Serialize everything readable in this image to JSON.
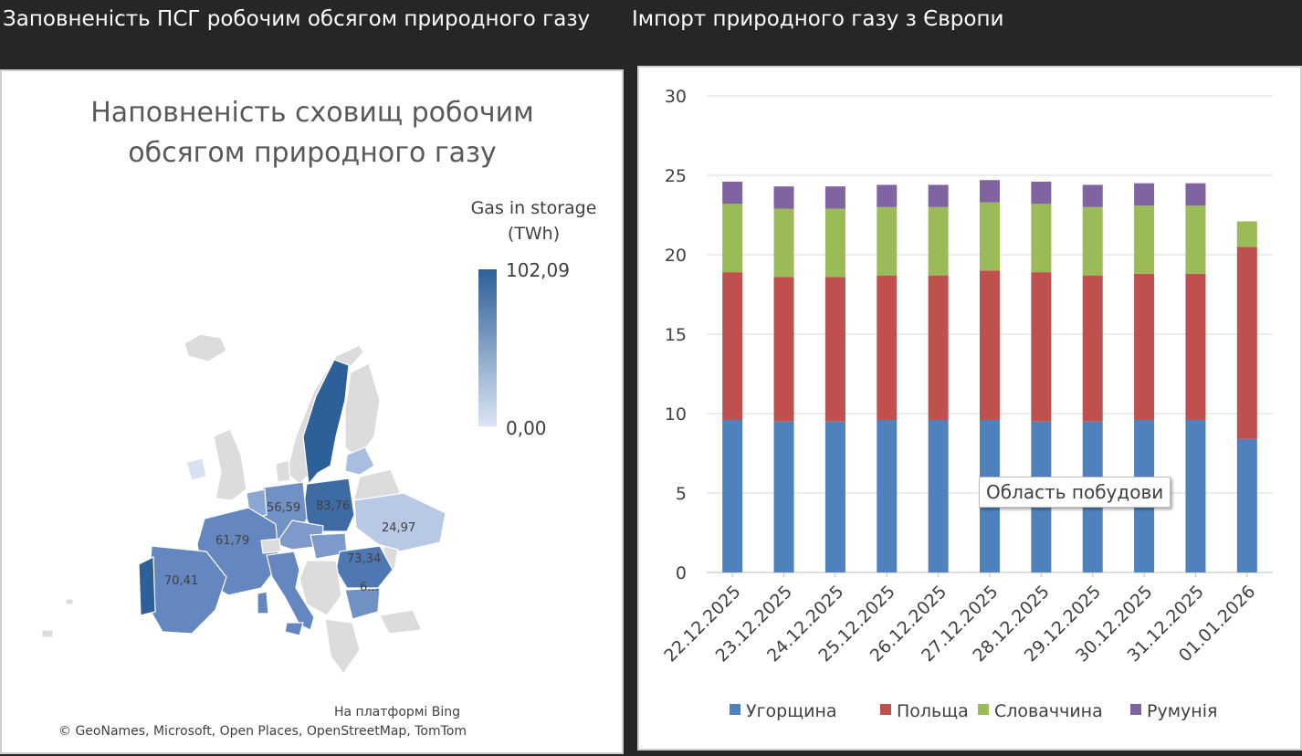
{
  "header": {
    "left_title": "Заповненість ПСГ робочим обсягом природного газу",
    "right_title": "Імпорт природного газу з Європи"
  },
  "map": {
    "title_line1": "Наповненість сховищ робочим",
    "title_line2": "обсягом природного газу",
    "legend_title_line1": "Gas in storage",
    "legend_title_line2": "(TWh)",
    "legend_max": "102,09",
    "legend_min": "0,00",
    "labels": {
      "germany": "56,59",
      "poland": "83,76",
      "france": "61,79",
      "ukraine": "24,97",
      "romania": "73,34",
      "spain": "70,41",
      "bulgaria": "6..."
    },
    "attribution_line1": "На платформі Bing",
    "attribution_line2": "© GeoNames, Microsoft, Open Places, OpenStreetMap, TomTom"
  },
  "tooltip": "Область побудови",
  "colors": {
    "hungary": "#4f81bd",
    "poland": "#c0504d",
    "slovakia": "#9bbb59",
    "romania": "#8064a2"
  },
  "chart_data": {
    "type": "bar",
    "stacked": true,
    "title": "",
    "xlabel": "",
    "ylabel": "",
    "ylim": [
      0,
      30
    ],
    "yticks": [
      0,
      5,
      10,
      15,
      20,
      25,
      30
    ],
    "grid": true,
    "legend_position": "bottom",
    "categories": [
      "22.12.2025",
      "23.12.2025",
      "24.12.2025",
      "25.12.2025",
      "26.12.2025",
      "27.12.2025",
      "28.12.2025",
      "29.12.2025",
      "30.12.2025",
      "31.12.2025",
      "01.01.2026"
    ],
    "series": [
      {
        "name": "Угорщина",
        "values": [
          9.6,
          9.5,
          9.5,
          9.6,
          9.6,
          9.6,
          9.5,
          9.5,
          9.6,
          9.6,
          8.4
        ]
      },
      {
        "name": "Польща",
        "values": [
          9.3,
          9.1,
          9.1,
          9.1,
          9.1,
          9.4,
          9.4,
          9.2,
          9.2,
          9.2,
          12.1
        ]
      },
      {
        "name": "Словаччина",
        "values": [
          4.3,
          4.3,
          4.3,
          4.3,
          4.3,
          4.3,
          4.3,
          4.3,
          4.3,
          4.3,
          1.6
        ]
      },
      {
        "name": "Румунія",
        "values": [
          1.4,
          1.4,
          1.4,
          1.4,
          1.4,
          1.4,
          1.4,
          1.4,
          1.4,
          1.4,
          0
        ]
      }
    ]
  }
}
